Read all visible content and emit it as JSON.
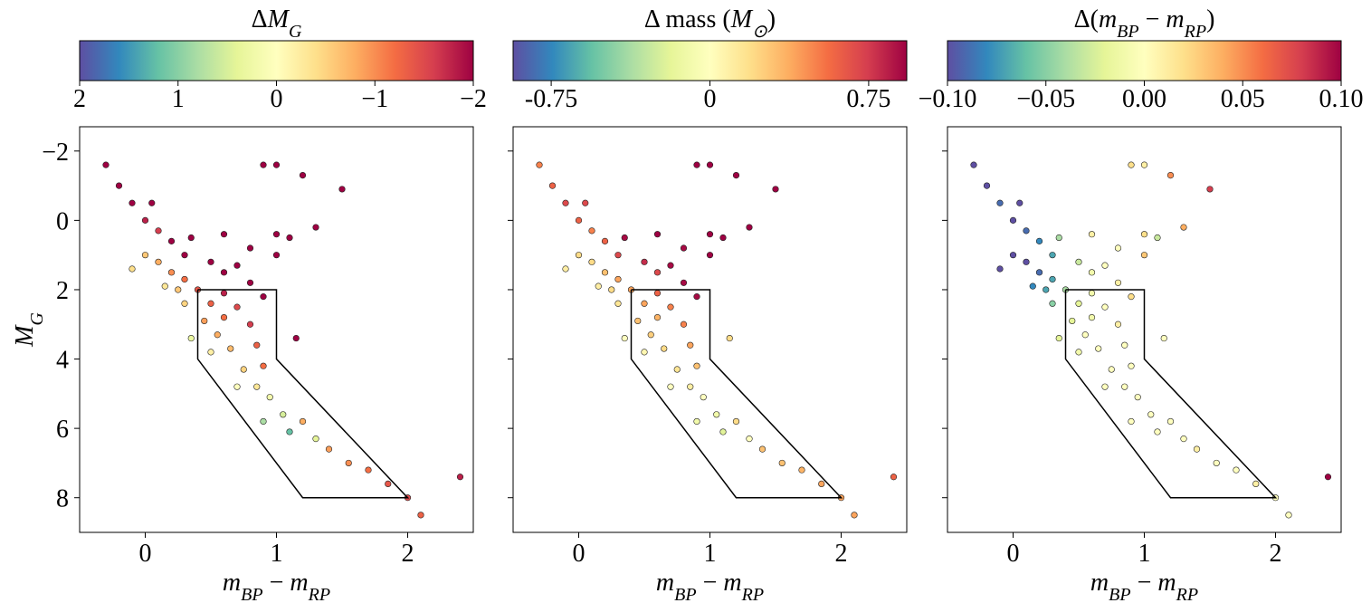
{
  "chart_data": [
    {
      "type": "scatter",
      "xlabel": [
        [
          "m",
          "i"
        ],
        [
          "BP",
          "sub"
        ],
        [
          " − ",
          "n"
        ],
        [
          "m",
          "i"
        ],
        [
          "RP",
          "sub"
        ]
      ],
      "ylabel": [
        [
          "M",
          "i"
        ],
        [
          "G",
          "sub"
        ]
      ],
      "xlim": [
        -0.5,
        2.5
      ],
      "ylim": [
        -2.7,
        9
      ],
      "y_inverted": true,
      "xticks": [
        0,
        1,
        2
      ],
      "yticks": [
        {
          "value": -2,
          "label": "−2"
        },
        0,
        2,
        4,
        6,
        8
      ],
      "show_yticklabels": true,
      "x": [
        -0.3,
        -0.2,
        -0.1,
        0,
        0.05,
        0.1,
        0.2,
        0.3,
        0.35,
        0.5,
        0.6,
        0.7,
        0.8,
        0.9,
        1.0,
        0.9,
        1.0,
        1.2,
        1.3,
        1.5,
        1.1,
        0.6,
        0.7,
        0.8,
        0.85,
        0.9,
        0.6,
        0.5,
        0.4,
        0.3,
        0.2,
        0.1,
        0.0,
        -0.1,
        0.25,
        0.15,
        0.3,
        0.55,
        0.65,
        0.75,
        0.85,
        0.95,
        1.05,
        1.2,
        1.3,
        1.4,
        1.55,
        1.7,
        1.85,
        2.0,
        2.1,
        2.4,
        1.1,
        0.9,
        0.7,
        0.5,
        0.35,
        0.45,
        0.6,
        1.15,
        1.0,
        0.8
      ],
      "y": [
        -1.6,
        -1,
        -0.5,
        0,
        -0.5,
        0.3,
        0.6,
        1,
        0.5,
        1.2,
        1.5,
        1.3,
        1.8,
        2.2,
        1.0,
        -1.6,
        -1.6,
        -1.3,
        0.2,
        -0.9,
        0.5,
        0.4,
        2.5,
        3.0,
        3.6,
        4.2,
        2.8,
        2.4,
        2.0,
        1.7,
        1.5,
        1.2,
        1.0,
        1.4,
        2.0,
        1.9,
        2.4,
        3.3,
        3.7,
        4.3,
        4.8,
        5.1,
        5.6,
        5.8,
        6.3,
        6.6,
        7.0,
        7.2,
        7.6,
        8.0,
        8.5,
        7.4,
        6.1,
        5.8,
        4.8,
        3.8,
        3.4,
        2.9,
        2.1,
        3.4,
        0.4,
        0.8
      ],
      "c": [
        -2,
        -2,
        -2,
        -1.8,
        -2,
        -1.6,
        -2,
        -2,
        -2,
        -2,
        -2,
        -2,
        -2,
        -2,
        -2,
        -2,
        -2,
        -2,
        -2,
        -2,
        -2,
        -2,
        -1.5,
        -1.6,
        -1.3,
        -1.2,
        -1.2,
        -1.3,
        -1.4,
        -1.2,
        -1.0,
        -0.8,
        -0.6,
        -0.4,
        -0.6,
        -0.3,
        -0.5,
        -0.8,
        -0.7,
        -0.5,
        -0.3,
        0.2,
        0.5,
        -0.8,
        0.4,
        -0.9,
        -1.0,
        -1.2,
        -1.4,
        -1.5,
        -1.3,
        -1.8,
        1.2,
        0.8,
        0.0,
        -0.2,
        0.3,
        -0.9,
        -1.8,
        -2,
        -2,
        -2
      ],
      "region": {
        "x": [
          0.4,
          1,
          1,
          2,
          1.2,
          0.4,
          0.4
        ],
        "y": [
          2,
          2,
          4,
          8,
          8,
          4,
          2
        ]
      },
      "colorbar": {
        "label": [
          [
            "Δ",
            "n"
          ],
          [
            "M",
            "i"
          ],
          [
            "G",
            "sub"
          ]
        ],
        "clim": [
          2,
          -2
        ],
        "ticks": [
          2,
          1,
          0,
          {
            "value": -1,
            "label": "−1"
          },
          {
            "value": -2,
            "label": "−2"
          }
        ],
        "colors": [
          "#5e4fa2",
          "#3288bd",
          "#66c2a5",
          "#abdda4",
          "#e6f598",
          "#ffffbf",
          "#fee08b",
          "#fdae61",
          "#f46d43",
          "#d53e4f",
          "#9e0142"
        ]
      }
    },
    {
      "type": "scatter",
      "xlabel": [
        [
          "m",
          "i"
        ],
        [
          "BP",
          "sub"
        ],
        [
          " − ",
          "n"
        ],
        [
          "m",
          "i"
        ],
        [
          "RP",
          "sub"
        ]
      ],
      "xlim": [
        -0.5,
        2.5
      ],
      "ylim": [
        -2.7,
        9
      ],
      "y_inverted": true,
      "xticks": [
        0,
        1,
        2
      ],
      "yticks": [
        -2,
        0,
        2,
        4,
        6,
        8
      ],
      "show_yticklabels": false,
      "x": [
        -0.3,
        -0.2,
        -0.1,
        0,
        0.05,
        0.1,
        0.2,
        0.3,
        0.35,
        0.5,
        0.6,
        0.7,
        0.8,
        0.9,
        1.0,
        0.9,
        1.0,
        1.2,
        1.3,
        1.5,
        1.1,
        0.6,
        0.7,
        0.8,
        0.85,
        0.9,
        0.6,
        0.5,
        0.4,
        0.3,
        0.2,
        0.1,
        0.0,
        -0.1,
        0.25,
        0.15,
        0.3,
        0.55,
        0.65,
        0.75,
        0.85,
        0.95,
        1.05,
        1.2,
        1.3,
        1.4,
        1.55,
        1.7,
        1.85,
        2.0,
        2.1,
        2.4,
        1.1,
        0.9,
        0.7,
        0.5,
        0.35,
        0.45,
        0.6,
        1.15,
        1.0,
        0.8
      ],
      "y": [
        -1.6,
        -1,
        -0.5,
        0,
        -0.5,
        0.3,
        0.6,
        1,
        0.5,
        1.2,
        1.5,
        1.3,
        1.8,
        2.2,
        1.0,
        -1.6,
        -1.6,
        -1.3,
        0.2,
        -0.9,
        0.5,
        0.4,
        2.5,
        3.0,
        3.6,
        4.2,
        2.8,
        2.4,
        2.0,
        1.7,
        1.5,
        1.2,
        1.0,
        1.4,
        2.0,
        1.9,
        2.4,
        3.3,
        3.7,
        4.3,
        4.8,
        5.1,
        5.6,
        5.8,
        6.3,
        6.6,
        7.0,
        7.2,
        7.6,
        8.0,
        8.5,
        7.4,
        6.1,
        5.8,
        4.8,
        3.8,
        3.4,
        2.9,
        2.1,
        3.4,
        0.4,
        0.8
      ],
      "c": [
        0.5,
        0.6,
        0.7,
        0.6,
        0.7,
        0.5,
        0.6,
        0.7,
        0.9,
        0.8,
        0.7,
        0.9,
        0.9,
        0.9,
        0.93,
        0.93,
        0.93,
        0.93,
        0.93,
        0.93,
        0.93,
        0.93,
        0.5,
        0.5,
        0.4,
        0.3,
        0.35,
        0.4,
        0.4,
        0.4,
        0.3,
        0.2,
        0.2,
        0.1,
        0.2,
        0.1,
        0.15,
        0.25,
        0.2,
        0.15,
        0.1,
        0.0,
        -0.1,
        0.2,
        0.0,
        0.3,
        0.3,
        0.35,
        0.4,
        0.4,
        0.4,
        0.6,
        -0.2,
        -0.1,
        0.0,
        0.05,
        0.0,
        0.3,
        0.6,
        0.2,
        0.93,
        0.9
      ],
      "region": {
        "x": [
          0.4,
          1,
          1,
          2,
          1.2,
          0.4,
          0.4
        ],
        "y": [
          2,
          2,
          4,
          8,
          8,
          4,
          2
        ]
      },
      "colorbar": {
        "label": [
          [
            "Δ mass (",
            "n"
          ],
          [
            "M",
            "i"
          ],
          [
            "⊙",
            "sub"
          ],
          [
            ")",
            "n"
          ]
        ],
        "clim": [
          -0.93,
          0.93
        ],
        "ticks": [
          {
            "value": -0.75,
            "label": "-0.75"
          },
          0,
          0.75
        ],
        "colors": [
          "#5e4fa2",
          "#3288bd",
          "#66c2a5",
          "#abdda4",
          "#e6f598",
          "#ffffbf",
          "#fee08b",
          "#fdae61",
          "#f46d43",
          "#d53e4f",
          "#9e0142"
        ]
      }
    },
    {
      "type": "scatter",
      "xlabel": [
        [
          "m",
          "i"
        ],
        [
          "BP",
          "sub"
        ],
        [
          " − ",
          "n"
        ],
        [
          "m",
          "i"
        ],
        [
          "RP",
          "sub"
        ]
      ],
      "xlim": [
        -0.5,
        2.5
      ],
      "ylim": [
        -2.7,
        9
      ],
      "y_inverted": true,
      "xticks": [
        0,
        1,
        2
      ],
      "yticks": [
        -2,
        0,
        2,
        4,
        6,
        8
      ],
      "show_yticklabels": false,
      "x": [
        -0.3,
        -0.2,
        -0.1,
        0,
        0.05,
        0.1,
        0.2,
        0.3,
        0.35,
        0.5,
        0.6,
        0.7,
        0.8,
        0.9,
        1.0,
        0.9,
        1.0,
        1.2,
        1.3,
        1.5,
        1.1,
        0.6,
        0.7,
        0.8,
        0.85,
        0.9,
        0.6,
        0.5,
        0.4,
        0.3,
        0.2,
        0.1,
        0.0,
        -0.1,
        0.25,
        0.15,
        0.3,
        0.55,
        0.65,
        0.75,
        0.85,
        0.95,
        1.05,
        1.2,
        1.3,
        1.4,
        1.55,
        1.7,
        1.85,
        2.0,
        2.1,
        2.4,
        1.1,
        0.9,
        0.7,
        0.5,
        0.35,
        0.45,
        0.6,
        1.15,
        1.0,
        0.8
      ],
      "y": [
        -1.6,
        -1,
        -0.5,
        0,
        -0.5,
        0.3,
        0.6,
        1,
        0.5,
        1.2,
        1.5,
        1.3,
        1.8,
        2.2,
        1.0,
        -1.6,
        -1.6,
        -1.3,
        0.2,
        -0.9,
        0.5,
        0.4,
        2.5,
        3.0,
        3.6,
        4.2,
        2.8,
        2.4,
        2.0,
        1.7,
        1.5,
        1.2,
        1.0,
        1.4,
        2.0,
        1.9,
        2.4,
        3.3,
        3.7,
        4.3,
        4.8,
        5.1,
        5.6,
        5.8,
        6.3,
        6.6,
        7.0,
        7.2,
        7.6,
        8.0,
        8.5,
        7.4,
        6.1,
        5.8,
        4.8,
        3.8,
        3.4,
        2.9,
        2.1,
        3.4,
        0.4,
        0.8
      ],
      "c": [
        -0.1,
        -0.1,
        -0.09,
        -0.1,
        -0.1,
        -0.09,
        -0.08,
        -0.07,
        -0.04,
        -0.03,
        -0.01,
        0.0,
        0.01,
        0.02,
        0.03,
        0.02,
        0.01,
        0.05,
        0.04,
        0.08,
        -0.03,
        0.01,
        0.0,
        0.01,
        0.0,
        0.0,
        -0.01,
        -0.02,
        -0.04,
        -0.07,
        -0.09,
        -0.1,
        -0.1,
        -0.1,
        -0.07,
        -0.08,
        -0.05,
        0.0,
        0.0,
        0.0,
        0.0,
        0.0,
        0.0,
        0.0,
        0.0,
        0.01,
        0.0,
        0.0,
        0.01,
        0.0,
        0.0,
        0.1,
        0.0,
        0.0,
        0.0,
        -0.01,
        -0.02,
        -0.02,
        -0.01,
        0.0,
        0.02,
        0.0
      ],
      "region": {
        "x": [
          0.4,
          1,
          1,
          2,
          1.2,
          0.4,
          0.4
        ],
        "y": [
          2,
          2,
          4,
          8,
          8,
          4,
          2
        ]
      },
      "colorbar": {
        "label": [
          [
            "Δ(",
            "n"
          ],
          [
            "m",
            "i"
          ],
          [
            "BP",
            "sub"
          ],
          [
            " − ",
            "n"
          ],
          [
            "m",
            "i"
          ],
          [
            "RP",
            "sub"
          ],
          [
            ")",
            "n"
          ]
        ],
        "clim": [
          -0.1,
          0.1
        ],
        "ticks": [
          {
            "value": -0.1,
            "label": "−0.10"
          },
          {
            "value": -0.05,
            "label": "−0.05"
          },
          {
            "value": 0,
            "label": "0.00"
          },
          {
            "value": 0.05,
            "label": "0.05"
          },
          {
            "value": 0.1,
            "label": "0.10"
          }
        ],
        "colors": [
          "#5e4fa2",
          "#3288bd",
          "#66c2a5",
          "#abdda4",
          "#e6f598",
          "#ffffbf",
          "#fee08b",
          "#fdae61",
          "#f46d43",
          "#d53e4f",
          "#9e0142"
        ]
      }
    }
  ]
}
